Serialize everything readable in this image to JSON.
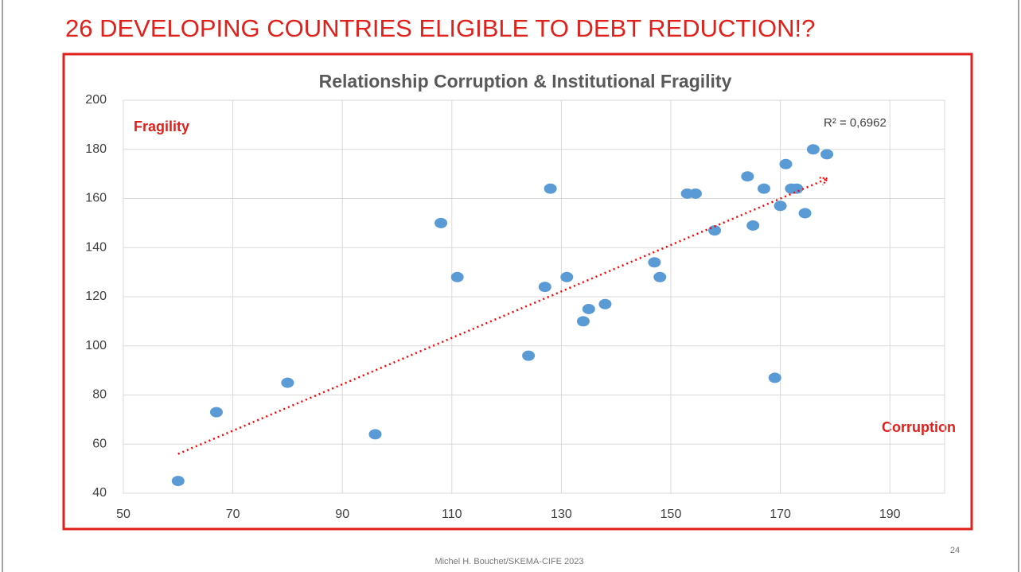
{
  "slide_title": "26 DEVELOPING COUNTRIES ELIGIBLE TO DEBT REDUCTION!?",
  "footer": "Michel H. Bouchet/SKEMA-CIFE 2023",
  "page_number": "24",
  "chart_data": {
    "type": "scatter",
    "title": "Relationship Corruption & Institutional Fragility",
    "y_annotation": "Fragility",
    "x_annotation": "Corruption",
    "r_squared_label": "R² = 0,6962",
    "color": "#5b9bd5",
    "trendline_color": "#ff0000",
    "grid": true,
    "x": [
      60,
      67,
      80,
      96,
      108,
      111,
      124,
      127,
      128,
      131,
      134,
      135,
      138,
      147,
      148,
      153,
      154.5,
      158,
      164,
      165,
      167,
      169,
      170,
      171,
      172,
      173,
      174.5,
      176,
      178.5
    ],
    "y": [
      45,
      73,
      85,
      64,
      150,
      128,
      96,
      124,
      164,
      128,
      110,
      115,
      117,
      134,
      128,
      162,
      162,
      147,
      169,
      149,
      164,
      87,
      157,
      174,
      164,
      164,
      154,
      180,
      178
    ],
    "trendline": {
      "x": [
        60,
        178.5
      ],
      "y": [
        56,
        168
      ]
    },
    "xlim": [
      50,
      200
    ],
    "xticks": [
      50,
      70,
      90,
      110,
      130,
      150,
      170,
      190
    ],
    "ylim": [
      40,
      200
    ],
    "yticks": [
      40,
      60,
      80,
      100,
      120,
      140,
      160,
      180,
      200
    ]
  }
}
